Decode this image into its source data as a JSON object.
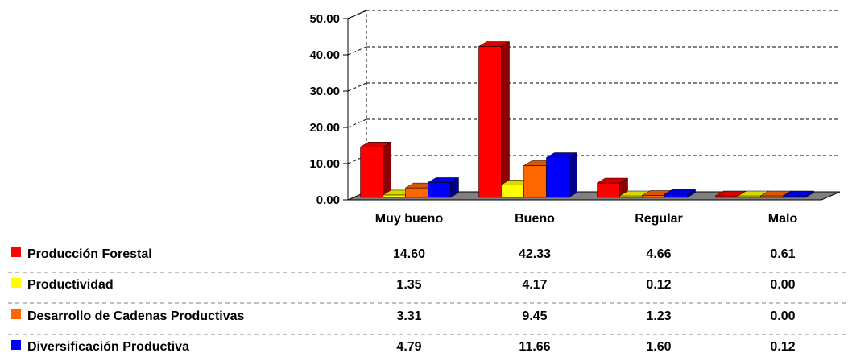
{
  "chart_data": {
    "type": "bar",
    "categories": [
      "Muy bueno",
      "Bueno",
      "Regular",
      "Malo"
    ],
    "ylim": [
      0,
      50
    ],
    "y_ticks": [
      "0.00",
      "10.00",
      "20.00",
      "30.00",
      "40.00",
      "50.00"
    ],
    "grid": true,
    "legend_placement": "bottom-table",
    "series": [
      {
        "name": "Producción Forestal",
        "color": "#ff0000",
        "values": [
          14.6,
          42.33,
          4.66,
          0.61
        ],
        "labels": [
          "14.60",
          "42.33",
          "4.66",
          "0.61"
        ]
      },
      {
        "name": "Productividad",
        "color": "#ffff00",
        "values": [
          1.35,
          4.17,
          0.12,
          0.0
        ],
        "labels": [
          "1.35",
          "4.17",
          "0.12",
          "0.00"
        ]
      },
      {
        "name": "Desarrollo de Cadenas Productivas",
        "color": "#ff6600",
        "values": [
          3.31,
          9.45,
          1.23,
          0.0
        ],
        "labels": [
          "3.31",
          "9.45",
          "1.23",
          "0.00"
        ]
      },
      {
        "name": "Diversificación Productiva",
        "color": "#0000ff",
        "values": [
          4.79,
          11.66,
          1.6,
          0.12
        ],
        "labels": [
          "4.79",
          "11.66",
          "1.60",
          "0.12"
        ]
      }
    ]
  }
}
